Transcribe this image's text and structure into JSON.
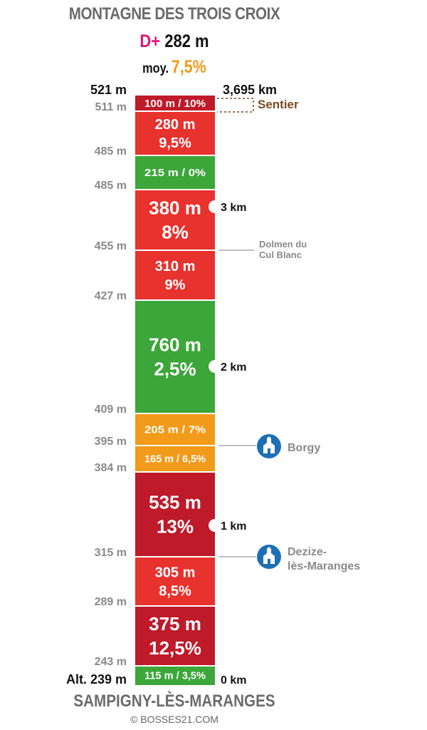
{
  "title": "MONTAGNE DES TROIS CROIX",
  "elevation_gain": {
    "label": "D+",
    "value": "282 m"
  },
  "average": {
    "label": "moy.",
    "value": "7,5%"
  },
  "start_location": "SAMPIGNY-LÈS-MARANGES",
  "credit": "© BOSSES21.COM",
  "colors": {
    "dark_red": "#be1a2a",
    "red": "#e7322e",
    "green": "#3ca63a",
    "orange": "#f29a1a",
    "gray": "#8a8a8a",
    "blue": "#1d6fb5",
    "brown": "#7a4a1d"
  },
  "chart_data": {
    "type": "bar",
    "total_distance": "3,695 km",
    "summit_altitude": "521 m",
    "base_altitude": "Alt. 239 m",
    "segments": [
      {
        "label": "100 m / 10%",
        "length_m": 100,
        "grade_pct": 10,
        "color": "dark_red",
        "style": "inline"
      },
      {
        "label": "280 m",
        "label2": "9,5%",
        "length_m": 280,
        "grade_pct": 9.5,
        "color": "red",
        "style": "two"
      },
      {
        "label": "215 m / 0%",
        "length_m": 215,
        "grade_pct": 0,
        "color": "green",
        "style": "inline"
      },
      {
        "label": "380 m",
        "label2": "8%",
        "length_m": 380,
        "grade_pct": 8,
        "color": "red",
        "style": "big"
      },
      {
        "label": "310 m",
        "label2": "9%",
        "length_m": 310,
        "grade_pct": 9,
        "color": "red",
        "style": "two"
      },
      {
        "label": "760 m",
        "label2": "2,5%",
        "length_m": 760,
        "grade_pct": 2.5,
        "color": "green",
        "style": "big"
      },
      {
        "label": "205 m / 7%",
        "length_m": 205,
        "grade_pct": 7,
        "color": "orange",
        "style": "inline"
      },
      {
        "label": "165 m / 6,5%",
        "length_m": 165,
        "grade_pct": 6.5,
        "color": "orange",
        "style": "inline"
      },
      {
        "label": "535 m",
        "label2": "13%",
        "length_m": 535,
        "grade_pct": 13,
        "color": "dark_red",
        "style": "big"
      },
      {
        "label": "305 m",
        "label2": "8,5%",
        "length_m": 305,
        "grade_pct": 8.5,
        "color": "red",
        "style": "two"
      },
      {
        "label": "375 m",
        "label2": "12,5%",
        "length_m": 375,
        "grade_pct": 12.5,
        "color": "dark_red",
        "style": "big"
      },
      {
        "label": "115 m / 3,5%",
        "length_m": 115,
        "grade_pct": 3.5,
        "color": "green",
        "style": "inline"
      }
    ],
    "altitude_labels": [
      "511 m",
      "485 m",
      "485 m",
      "455 m",
      "427 m",
      "409 m",
      "395 m",
      "384 m",
      "315 m",
      "289 m",
      "243 m"
    ],
    "km_markers": [
      "3 km",
      "2 km",
      "1 km",
      "0 km"
    ],
    "annotations": [
      {
        "text": "Sentier",
        "kind": "trail"
      },
      {
        "text": "Dolmen du",
        "text2": "Cul Blanc",
        "kind": "landmark"
      },
      {
        "text": "Borgy",
        "kind": "village"
      },
      {
        "text": "Dezize-",
        "text2": "lès-Maranges",
        "kind": "village"
      }
    ]
  }
}
